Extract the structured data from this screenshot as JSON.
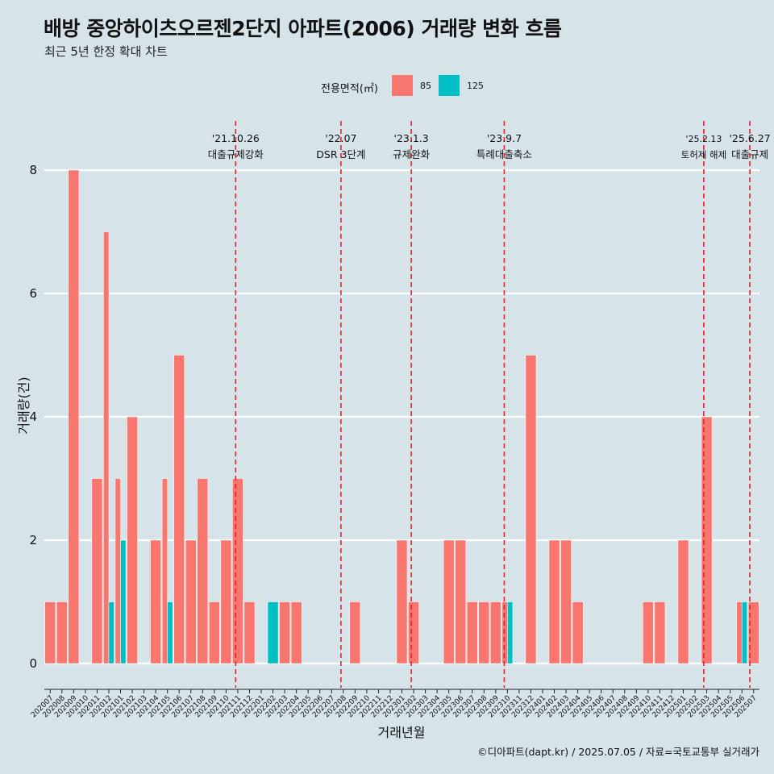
{
  "title": "배방 중앙하이츠오르젠2단지 아파트(2006) 거래량 변화 흐름",
  "subtitle": "최근 5년 한정 확대 차트",
  "legend": {
    "title": "전용면적(㎡)",
    "items": [
      {
        "label": "85",
        "color": "#f8766d"
      },
      {
        "label": "125",
        "color": "#00bfc4"
      }
    ]
  },
  "caption": "©디아파트(dapt.kr) / 2025.07.05 / 자료=국토교통부 실거래가",
  "chart_data": {
    "type": "bar",
    "xlabel": "거래년월",
    "ylabel": "거래량(건)",
    "ylim": [
      0,
      8
    ],
    "y_ticks": [
      0,
      2,
      4,
      6,
      8
    ],
    "grid": "horizontal major lines only",
    "legend_position": "top",
    "categories": [
      "202007",
      "202008",
      "202009",
      "202010",
      "202011",
      "202012",
      "202101",
      "202102",
      "202103",
      "202104",
      "202105",
      "202106",
      "202107",
      "202108",
      "202109",
      "202110",
      "202111",
      "202112",
      "202201",
      "202202",
      "202203",
      "202204",
      "202205",
      "202206",
      "202207",
      "202208",
      "202209",
      "202210",
      "202211",
      "202212",
      "202301",
      "202302",
      "202303",
      "202304",
      "202305",
      "202306",
      "202307",
      "202308",
      "202309",
      "202310",
      "202311",
      "202312",
      "202401",
      "202402",
      "202403",
      "202404",
      "202405",
      "202406",
      "202407",
      "202408",
      "202409",
      "202410",
      "202411",
      "202412",
      "202501",
      "202502",
      "202503",
      "202504",
      "202505",
      "202506",
      "202507"
    ],
    "series": [
      {
        "name": "85",
        "color": "#f8766d",
        "values": [
          1,
          1,
          8,
          0,
          3,
          7,
          3,
          4,
          0,
          2,
          3,
          5,
          2,
          3,
          1,
          2,
          3,
          1,
          0,
          0,
          1,
          1,
          0,
          0,
          0,
          0,
          1,
          0,
          0,
          0,
          2,
          1,
          0,
          0,
          2,
          2,
          1,
          1,
          1,
          1,
          0,
          5,
          0,
          2,
          2,
          1,
          0,
          0,
          0,
          0,
          0,
          1,
          1,
          0,
          2,
          0,
          4,
          0,
          0,
          1,
          1
        ]
      },
      {
        "name": "125",
        "color": "#00bfc4",
        "values": [
          0,
          0,
          0,
          0,
          0,
          1,
          2,
          0,
          0,
          0,
          1,
          0,
          0,
          0,
          0,
          0,
          0,
          0,
          0,
          1,
          0,
          0,
          0,
          0,
          0,
          0,
          0,
          0,
          0,
          0,
          0,
          0,
          0,
          0,
          0,
          0,
          0,
          0,
          0,
          1,
          0,
          0,
          0,
          0,
          0,
          0,
          0,
          0,
          0,
          0,
          0,
          0,
          0,
          0,
          0,
          0,
          0,
          0,
          0,
          1,
          0
        ]
      }
    ],
    "events": [
      {
        "date": "'21.10.26",
        "label": "대출규제강화",
        "month_index": 15.82
      },
      {
        "date": "'22.07",
        "label": "DSR 3단계",
        "month_index": 24.8
      },
      {
        "date": "'23.1.3",
        "label": "규제완화",
        "month_index": 30.8
      },
      {
        "date": "'23.9.7",
        "label": "특례대출축소",
        "month_index": 38.73
      },
      {
        "date": "'25.2.13",
        "label": "토허제 해제",
        "month_index": 55.75
      },
      {
        "date": "'25.6.27",
        "label": "대출규제",
        "month_index": 59.68
      }
    ]
  }
}
